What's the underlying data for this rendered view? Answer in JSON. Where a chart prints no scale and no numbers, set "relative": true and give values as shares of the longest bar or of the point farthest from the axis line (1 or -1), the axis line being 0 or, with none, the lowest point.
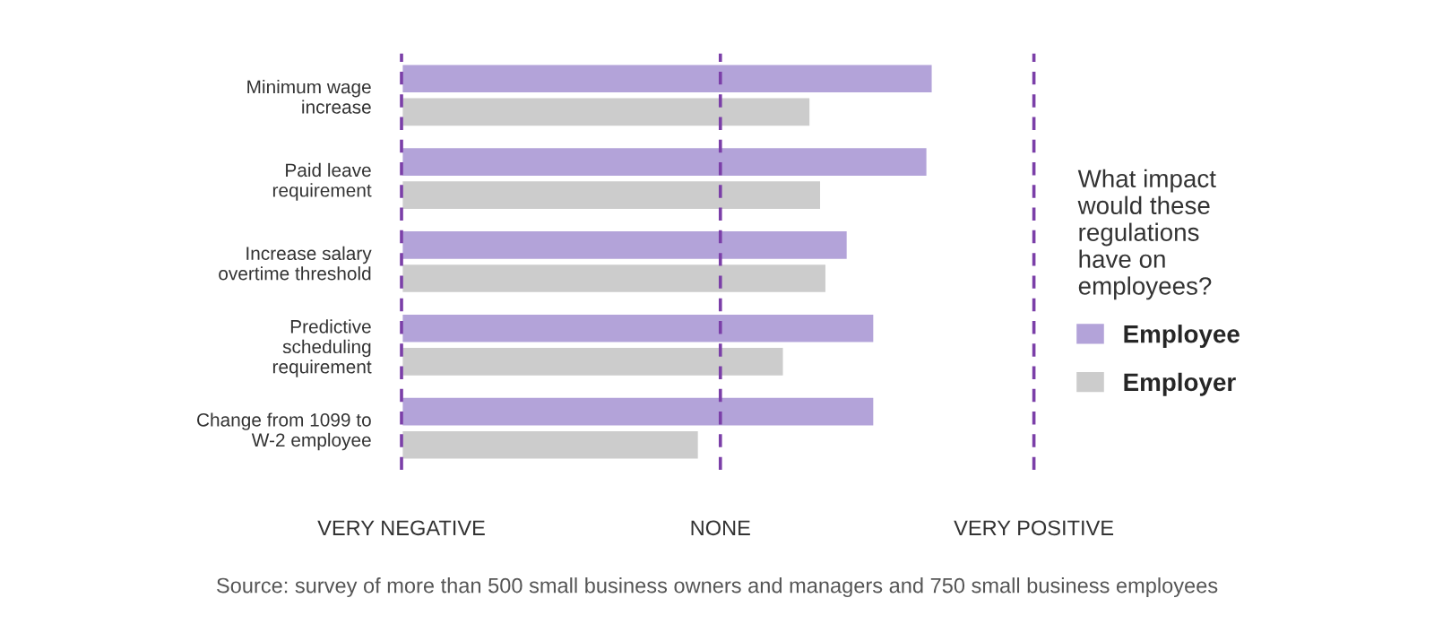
{
  "chart_data": {
    "type": "bar",
    "orientation": "horizontal",
    "relative": true,
    "categories": [
      "Minimum wage\nincrease",
      "Paid leave\nrequirement",
      "Increase salary\novertime threshold",
      "Predictive\nscheduling\nrequirement",
      "Change from 1099 to\nW-2 employee"
    ],
    "series": [
      {
        "name": "Employee",
        "color": "#b3a3d9",
        "values": [
          1,
          0.99,
          0.84,
          0.89,
          0.89
        ]
      },
      {
        "name": "Employer",
        "color": "#cccccc",
        "values": [
          0.77,
          0.79,
          0.8,
          0.72,
          0.56
        ]
      }
    ],
    "ref_lines": [
      {
        "axis": "x",
        "value": 0,
        "label": "VERY NEGATIVE",
        "color": "#7b3fa8",
        "line_style": "dashed"
      },
      {
        "axis": "x",
        "value": 0.6,
        "label": "NONE",
        "color": "#7b3fa8",
        "line_style": "dashed"
      },
      {
        "axis": "x",
        "value": 1.19,
        "label": "VERY POSITIVE",
        "color": "#7b3fa8",
        "line_style": "dashed"
      }
    ],
    "legend": "right",
    "legend_title": "What impact\nwould these\nregulations\nhave on\nemployees?",
    "annotations": [
      "Source: survey of more than 500 small business owners and managers and 750 small business employees"
    ]
  }
}
